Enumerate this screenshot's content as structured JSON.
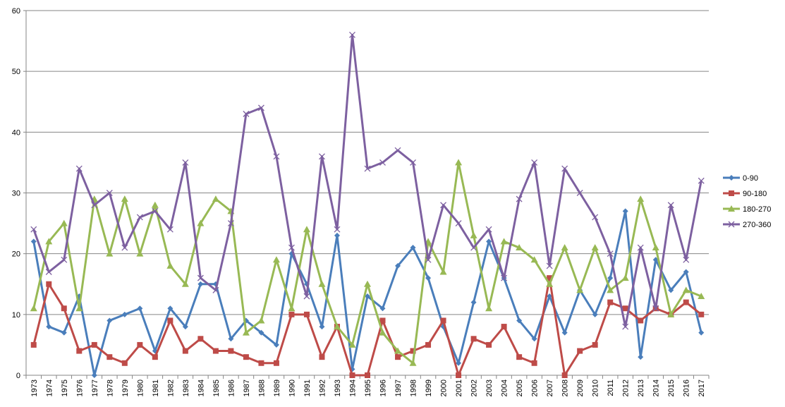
{
  "chart_data": {
    "type": "line",
    "title": "",
    "xlabel": "",
    "ylabel": "",
    "ylim": [
      0,
      60
    ],
    "yticks": [
      0,
      10,
      20,
      30,
      40,
      50,
      60
    ],
    "grid": "horizontal",
    "legend_position": "right",
    "x": [
      "1973",
      "1974",
      "1975",
      "1976",
      "1977",
      "1978",
      "1979",
      "1980",
      "1981",
      "1982",
      "1983",
      "1984",
      "1985",
      "1986",
      "1987",
      "1988",
      "1989",
      "1990",
      "1991",
      "1992",
      "1993",
      "1994",
      "1995",
      "1996",
      "1997",
      "1998",
      "1999",
      "2000",
      "2001",
      "2002",
      "2003",
      "2004",
      "2005",
      "2006",
      "2007",
      "2008",
      "2009",
      "2010",
      "2011",
      "2012",
      "2013",
      "2014",
      "2015",
      "2016",
      "2017"
    ],
    "series": [
      {
        "name": "0-90",
        "color": "#4a7ebb",
        "marker": "diamond",
        "values": [
          22,
          8,
          7,
          13,
          0,
          9,
          10,
          11,
          4,
          11,
          8,
          15,
          15,
          6,
          9,
          7,
          5,
          20,
          15,
          8,
          23,
          1,
          13,
          11,
          18,
          21,
          16,
          8,
          2,
          12,
          22,
          16,
          9,
          6,
          13,
          7,
          14,
          10,
          16,
          27,
          3,
          19,
          14,
          17,
          7
        ]
      },
      {
        "name": "90-180",
        "color": "#be4b48",
        "marker": "square",
        "values": [
          5,
          15,
          11,
          4,
          5,
          3,
          2,
          5,
          3,
          9,
          4,
          6,
          4,
          4,
          3,
          2,
          2,
          10,
          10,
          3,
          8,
          0,
          0,
          9,
          3,
          4,
          5,
          9,
          0,
          6,
          5,
          8,
          3,
          2,
          16,
          0,
          4,
          5,
          12,
          11,
          9,
          11,
          10,
          12,
          10
        ]
      },
      {
        "name": "180-270",
        "color": "#98b954",
        "marker": "triangle",
        "values": [
          11,
          22,
          25,
          11,
          29,
          20,
          29,
          20,
          28,
          18,
          15,
          25,
          29,
          27,
          7,
          9,
          19,
          11,
          24,
          15,
          8,
          5,
          15,
          7,
          4,
          2,
          22,
          17,
          35,
          23,
          11,
          22,
          21,
          19,
          15,
          21,
          14,
          21,
          14,
          16,
          29,
          21,
          10,
          14,
          13
        ]
      },
      {
        "name": "270-360",
        "color": "#7d60a0",
        "marker": "x",
        "values": [
          24,
          17,
          19,
          34,
          28,
          30,
          21,
          26,
          27,
          24,
          35,
          16,
          14,
          25,
          43,
          44,
          36,
          21,
          13,
          36,
          24,
          56,
          34,
          35,
          37,
          35,
          19,
          28,
          25,
          21,
          24,
          16,
          29,
          35,
          18,
          34,
          30,
          26,
          20,
          8,
          21,
          11,
          28,
          19,
          32
        ]
      }
    ]
  }
}
